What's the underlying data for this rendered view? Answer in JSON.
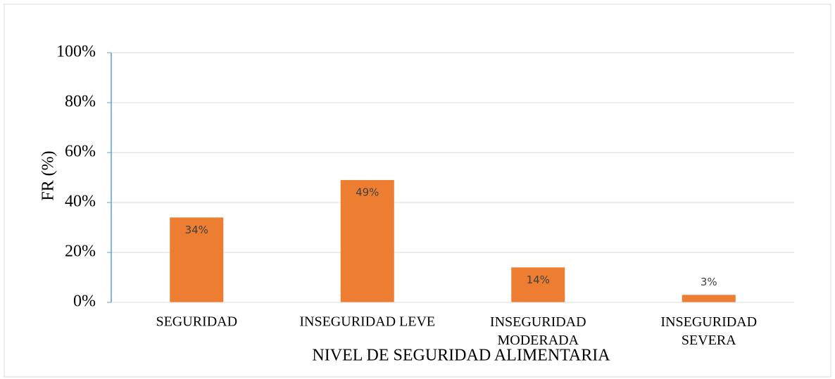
{
  "chart_data": {
    "type": "bar",
    "y_label": "FR (%)",
    "x_label": "NIVEL DE SEGURIDAD ALIMENTARIA",
    "categories": [
      "SEGURIDAD",
      "INSEGURIDAD LEVE",
      "INSEGURIDAD MODERADA",
      "INSEGURIDAD SEVERA"
    ],
    "values": [
      34,
      49,
      14,
      3
    ],
    "value_labels": [
      "34%",
      "49%",
      "14%",
      "3%"
    ],
    "color": "#ed7d31",
    "ylim": [
      0,
      100
    ],
    "yticks": [
      {
        "value": 0,
        "label": "0%"
      },
      {
        "value": 20,
        "label": "20%"
      },
      {
        "value": 40,
        "label": "40%"
      },
      {
        "value": 60,
        "label": "60%"
      },
      {
        "value": 80,
        "label": "80%"
      },
      {
        "value": 100,
        "label": "100%"
      }
    ],
    "grid": true
  }
}
